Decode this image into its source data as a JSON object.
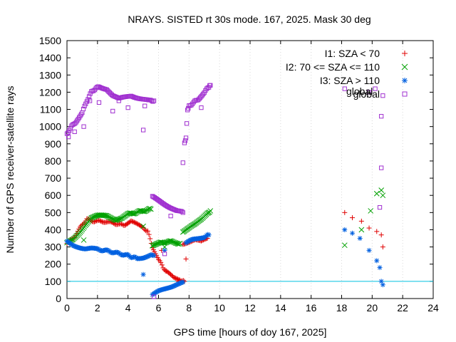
{
  "chart_data": {
    "type": "scatter",
    "title": "NRAYS. SISTED rt 30s mode. 167, 2025. Mask 30 deg",
    "xlabel": "GPS time [hours of doy 167, 2025]",
    "ylabel": "Number of GPS receiver-satellite rays",
    "xlim": [
      0,
      24
    ],
    "ylim": [
      0,
      1500
    ],
    "x_ticks": [
      0,
      2,
      4,
      6,
      8,
      10,
      12,
      14,
      16,
      18,
      20,
      22,
      24
    ],
    "y_ticks": [
      0,
      100,
      200,
      300,
      400,
      500,
      600,
      700,
      800,
      900,
      1000,
      1100,
      1200,
      1300,
      1400,
      1500
    ],
    "threshold_line": {
      "y": 100,
      "color": "#00c0e0"
    },
    "series": [
      {
        "name": "I1: SZA < 70",
        "marker": "+",
        "color": "#e00000",
        "dense_segments": [
          {
            "x": [
              0.0,
              0.5,
              1.0,
              1.3,
              1.8,
              2.3,
              3.0,
              3.5,
              3.8,
              4.2,
              4.8,
              5.0,
              5.3,
              5.6,
              6.0,
              6.3,
              6.6,
              7.0,
              7.4,
              7.7
            ],
            "y": [
              320,
              360,
              430,
              460,
              450,
              450,
              440,
              430,
              430,
              450,
              420,
              410,
              390,
              300,
              230,
              180,
              150,
              120,
              110,
              100
            ]
          },
          {
            "x": [
              7.6,
              8.0,
              8.4,
              8.8,
              9.2
            ],
            "y": [
              320,
              330,
              340,
              330,
              350
            ]
          }
        ],
        "scattered": {
          "x": [
            6.2,
            6.5,
            7.3,
            7.8,
            18.2,
            18.7,
            19.3,
            19.8,
            20.3,
            20.6,
            20.7
          ],
          "y": [
            280,
            160,
            100,
            230,
            500,
            470,
            450,
            410,
            390,
            370,
            300
          ]
        }
      },
      {
        "name": "I2: 70 <= SZA <= 110",
        "marker": "x",
        "color": "#00a000",
        "dense_segments": [
          {
            "x": [
              0.0,
              0.4,
              0.8,
              1.2,
              1.6,
              2.0,
              2.6,
              3.2,
              3.6,
              4.0,
              4.5,
              5.0,
              5.5
            ],
            "y": [
              320,
              340,
              380,
              430,
              470,
              480,
              480,
              460,
              470,
              490,
              500,
              510,
              520
            ]
          },
          {
            "x": [
              5.6,
              6.0,
              6.5,
              7.0,
              7.4
            ],
            "y": [
              310,
              320,
              330,
              330,
              320
            ]
          },
          {
            "x": [
              7.6,
              8.0,
              8.4,
              8.8,
              9.2,
              9.4
            ],
            "y": [
              390,
              410,
              430,
              460,
              500,
              510
            ]
          }
        ],
        "scattered": {
          "x": [
            1.1,
            5.0,
            6.4,
            18.2,
            19.3,
            19.9,
            20.3,
            20.6,
            20.7
          ],
          "y": [
            340,
            420,
            300,
            310,
            400,
            510,
            610,
            630,
            600
          ]
        }
      },
      {
        "name": "I3: SZA > 110",
        "marker": "*",
        "color": "#0060e0",
        "dense_segments": [
          {
            "x": [
              0.0,
              0.4,
              0.8,
              1.2,
              1.6,
              2.0,
              2.5,
              3.0,
              3.5,
              4.0,
              4.3,
              4.6,
              5.0,
              5.4,
              5.7
            ],
            "y": [
              330,
              310,
              300,
              290,
              290,
              285,
              280,
              270,
              260,
              250,
              240,
              235,
              240,
              250,
              250
            ]
          },
          {
            "x": [
              5.6,
              6.0,
              6.4,
              6.8,
              7.2,
              7.6
            ],
            "y": [
              20,
              40,
              55,
              70,
              85,
              95
            ]
          },
          {
            "x": [
              7.8,
              8.2,
              8.6,
              9.0,
              9.3
            ],
            "y": [
              320,
              340,
              350,
              360,
              370
            ]
          }
        ],
        "scattered": {
          "x": [
            5.0,
            6.4,
            18.2,
            18.7,
            19.2,
            19.8,
            20.3,
            20.5,
            20.6,
            20.7
          ],
          "y": [
            140,
            280,
            400,
            380,
            350,
            280,
            220,
            180,
            100,
            80
          ]
        }
      },
      {
        "name": "global",
        "marker": "square",
        "color": "#a030d0",
        "dense_segments": [
          {
            "x": [
              0.0,
              0.3,
              0.6,
              1.0,
              1.3,
              1.6,
              1.9,
              2.2,
              2.6,
              3.0,
              3.4,
              3.8,
              4.2,
              4.6,
              5.0,
              5.4,
              5.7
            ],
            "y": [
              960,
              1000,
              1030,
              1080,
              1150,
              1200,
              1225,
              1230,
              1220,
              1180,
              1160,
              1170,
              1180,
              1170,
              1160,
              1150,
              1150
            ]
          },
          {
            "x": [
              5.6,
              6.0,
              6.4,
              6.8,
              7.2,
              7.6
            ],
            "y": [
              590,
              570,
              550,
              530,
              510,
              500
            ]
          },
          {
            "x": [
              7.7,
              7.8,
              7.9,
              8.0,
              8.3,
              8.6,
              9.0,
              9.3,
              9.4
            ],
            "y": [
              910,
              930,
              1100,
              1120,
              1140,
              1160,
              1200,
              1230,
              1240
            ]
          }
        ],
        "scattered": {
          "x": [
            0.1,
            0.5,
            1.1,
            1.5,
            2.1,
            3.0,
            3.4,
            4.0,
            5.0,
            5.1,
            5.7,
            6.4,
            6.8,
            7.6,
            8.8,
            18.2,
            19.8,
            20.2,
            20.5,
            20.6,
            20.6,
            20.7
          ],
          "y": [
            940,
            970,
            1000,
            1150,
            1140,
            1090,
            1150,
            1110,
            980,
            1120,
            10,
            260,
            480,
            790,
            1110,
            1220,
            1200,
            1220,
            530,
            1060,
            760,
            1180
          ]
        }
      }
    ],
    "legend_position": "top-right",
    "label_overlay_text": "global"
  }
}
